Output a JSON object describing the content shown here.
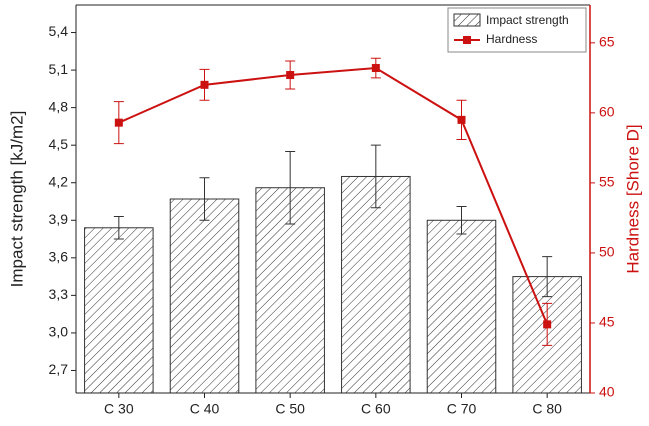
{
  "chart_data": {
    "type": "bar",
    "categories": [
      "C 30",
      "C 40",
      "C 50",
      "C 60",
      "C 70",
      "C 80"
    ],
    "ylabel": "Impact strength [kJ/m2]",
    "y2label": "Hardness [Shore D]",
    "ylim": [
      2.52,
      5.62
    ],
    "yticks": [
      {
        "value": 2.7,
        "label": "2,7"
      },
      {
        "value": 3.0,
        "label": "3,0"
      },
      {
        "value": 3.3,
        "label": "3,3"
      },
      {
        "value": 3.6,
        "label": "3,6"
      },
      {
        "value": 3.9,
        "label": "3,9"
      },
      {
        "value": 4.2,
        "label": "4,2"
      },
      {
        "value": 4.5,
        "label": "4,5"
      },
      {
        "value": 4.8,
        "label": "4,8"
      },
      {
        "value": 5.1,
        "label": "5,1"
      },
      {
        "value": 5.4,
        "label": "5,4"
      }
    ],
    "y2lim": [
      40,
      67.7
    ],
    "y2ticks": [
      40,
      45,
      50,
      55,
      60,
      65
    ],
    "legend": "upper right",
    "series": [
      {
        "name": "Impact strength",
        "type": "bar",
        "color": "#333333",
        "values": [
          3.84,
          4.07,
          4.16,
          4.25,
          3.9,
          3.45
        ],
        "errors": [
          0.09,
          0.17,
          0.29,
          0.25,
          0.11,
          0.16
        ]
      },
      {
        "name": "Hardness",
        "type": "line",
        "axis": "y2",
        "color": "#cc1111",
        "values": [
          59.3,
          62.0,
          62.7,
          63.2,
          59.5,
          44.9
        ],
        "errors": [
          1.5,
          1.1,
          1.0,
          0.7,
          1.4,
          1.5
        ]
      }
    ]
  }
}
